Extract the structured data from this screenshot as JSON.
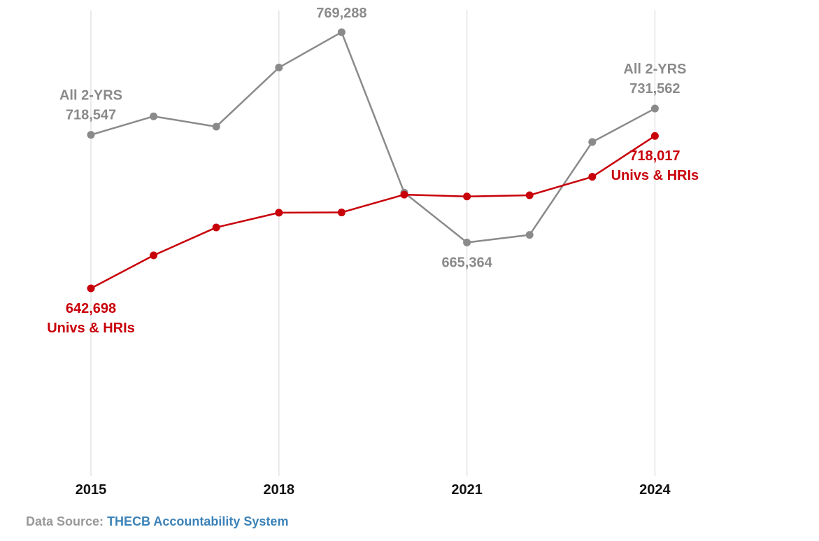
{
  "chart_data": {
    "type": "line",
    "title": "",
    "xlabel": "",
    "ylabel": "",
    "x": [
      2015,
      2016,
      2017,
      2018,
      2019,
      2020,
      2021,
      2022,
      2023,
      2024
    ],
    "x_ticks": [
      2015,
      2018,
      2021,
      2024
    ],
    "x_tick_labels": [
      "2015",
      "2018",
      "2021",
      "2024"
    ],
    "ylim": [
      550000,
      780000
    ],
    "grid": "vertical",
    "legend": "none",
    "series": [
      {
        "name": "All 2-YRS",
        "color": "#8a8a8a",
        "values": [
          718547,
          727700,
          722600,
          751800,
          769288,
          690000,
          665364,
          669100,
          715000,
          731562
        ]
      },
      {
        "name": "Univs & HRIs",
        "color": "#c8000a",
        "values": [
          642698,
          659000,
          672800,
          680100,
          680200,
          689000,
          688100,
          688700,
          697800,
          718017
        ]
      }
    ],
    "annotations": [
      {
        "series": 0,
        "index": 0,
        "lines": [
          "All 2-YRS",
          "718,547"
        ],
        "color": "#8a8a8a"
      },
      {
        "series": 0,
        "index": 4,
        "lines": [
          "769,288"
        ],
        "color": "#8a8a8a"
      },
      {
        "series": 0,
        "index": 6,
        "lines": [
          "665,364"
        ],
        "color": "#8a8a8a"
      },
      {
        "series": 0,
        "index": 9,
        "lines": [
          "All 2-YRS",
          "731,562"
        ],
        "color": "#8a8a8a"
      },
      {
        "series": 1,
        "index": 0,
        "lines": [
          "642,698",
          "Univs & HRIs"
        ],
        "color": "#c8000a"
      },
      {
        "series": 1,
        "index": 9,
        "lines": [
          "718,017",
          "Univs & HRIs"
        ],
        "color": "#c8000a"
      }
    ]
  },
  "source": {
    "label": "Data Source:",
    "link_text": "THECB Accountability System",
    "link_color": "#3b82b8"
  }
}
